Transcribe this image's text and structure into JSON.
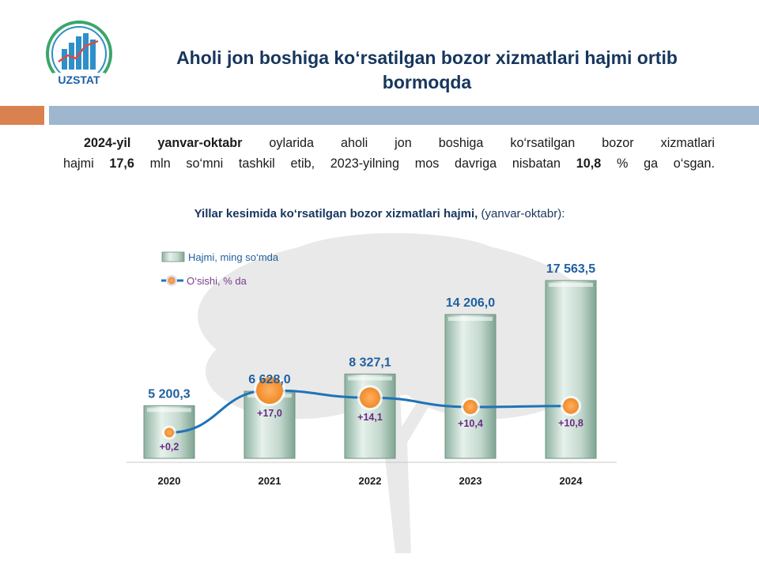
{
  "brand": {
    "logo_text": "UZSTAT",
    "colors": {
      "ring": "#3aa66a",
      "bars": "#2f8fc9",
      "text": "#1b5fa8",
      "orange": "#d9824f",
      "band": "#9fb6cf"
    }
  },
  "header": {
    "title_line1": "Aholi jon boshiga ko‘rsatilgan bozor xizmatlari hajmi ortib",
    "title_line2": "bormoqda"
  },
  "lead": {
    "p1_bold_start": "2024-yil yanvar-oktabr",
    "p1_text": " oylarida aholi jon boshiga ko‘rsatilgan bozor xizmatlari",
    "p2_pre": "hajmi ",
    "p2_bold1": "17,6",
    "p2_mid": " mln so‘mni tashkil etib, 2023-yilning mos davriga nisbatan ",
    "p2_bold2": "10,8",
    "p2_end": " % ga o‘sgan."
  },
  "chart_title": {
    "bold": "Yillar kesimida ko‘rsatilgan bozor xizmatlari hajmi,",
    "normal": " (yanvar-oktabr):"
  },
  "chart_data": {
    "type": "bar",
    "categories": [
      "2020",
      "2021",
      "2022",
      "2023",
      "2024"
    ],
    "series": [
      {
        "name": "Hajmi,  ming so‘mda",
        "type": "bar",
        "values": [
          5200.3,
          6628.0,
          8327.1,
          14206.0,
          17563.5
        ],
        "labels": [
          "5 200,3",
          "6 628,0",
          "8 327,1",
          "14 206,0",
          "17 563,5"
        ],
        "color": "#c9ddd3"
      },
      {
        "name": "O‘sishi,  % da",
        "type": "line",
        "values": [
          0.2,
          17.0,
          14.1,
          10.4,
          10.8
        ],
        "labels": [
          "+0,2",
          "+17,0",
          "+14,1",
          "+10,4",
          "+10,8"
        ],
        "color": "#1f73b7",
        "marker_color": "#f39a3c"
      }
    ],
    "legend_position": "top-left",
    "grid": false
  }
}
